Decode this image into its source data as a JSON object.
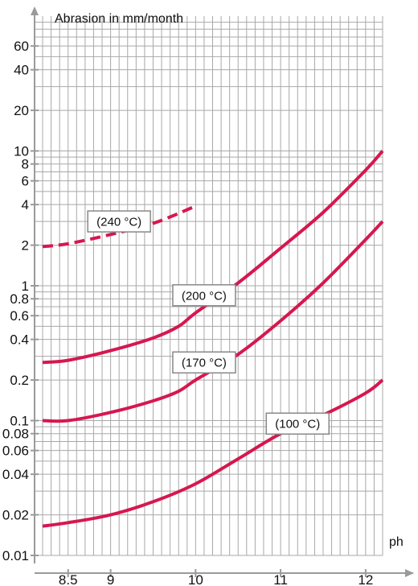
{
  "chart_data": {
    "type": "line",
    "xlabel": "ph",
    "ylabel": "Abrasion in mm/month",
    "xlim": [
      8.2,
      12.2
    ],
    "ylim": [
      0.01,
      100
    ],
    "y_scale": "log",
    "grid": true,
    "x_ticks": [
      {
        "value": 8.5,
        "label": "8.5"
      },
      {
        "value": 9,
        "label": "9"
      },
      {
        "value": 10,
        "label": "10"
      },
      {
        "value": 11,
        "label": "11"
      },
      {
        "value": 12,
        "label": "12"
      }
    ],
    "y_ticks": [
      {
        "value": 0.01,
        "label": "0.01"
      },
      {
        "value": 0.02,
        "label": "0.02"
      },
      {
        "value": 0.04,
        "label": "0.04"
      },
      {
        "value": 0.06,
        "label": "0.06"
      },
      {
        "value": 0.08,
        "label": "0.08"
      },
      {
        "value": 0.1,
        "label": "0.1"
      },
      {
        "value": 0.2,
        "label": "0.2"
      },
      {
        "value": 0.4,
        "label": "0.4"
      },
      {
        "value": 0.6,
        "label": "0.6"
      },
      {
        "value": 0.8,
        "label": "0.8"
      },
      {
        "value": 1,
        "label": "1"
      },
      {
        "value": 2,
        "label": "2"
      },
      {
        "value": 4,
        "label": "4"
      },
      {
        "value": 6,
        "label": "6"
      },
      {
        "value": 8,
        "label": "8"
      },
      {
        "value": 10,
        "label": "10"
      },
      {
        "value": 20,
        "label": "20"
      },
      {
        "value": 40,
        "label": "40"
      },
      {
        "value": 60,
        "label": "60"
      }
    ],
    "series": [
      {
        "name": "(240 °C)",
        "style": "dashed",
        "x": [
          8.2,
          8.5,
          9.0,
          9.5,
          10.0
        ],
        "values": [
          1.95,
          2.05,
          2.4,
          2.9,
          3.9
        ]
      },
      {
        "name": "(200 °C)",
        "style": "solid",
        "x": [
          8.2,
          8.5,
          9.0,
          9.5,
          9.8,
          10.0,
          10.5,
          11.0,
          11.5,
          12.0,
          12.2
        ],
        "values": [
          0.27,
          0.28,
          0.33,
          0.41,
          0.5,
          0.63,
          1.05,
          1.9,
          3.5,
          7.2,
          10
        ]
      },
      {
        "name": "(170 °C)",
        "style": "solid",
        "x": [
          8.2,
          8.5,
          9.0,
          9.5,
          9.8,
          10.0,
          10.5,
          11.0,
          11.5,
          12.0,
          12.2
        ],
        "values": [
          0.1,
          0.1,
          0.115,
          0.14,
          0.165,
          0.2,
          0.31,
          0.55,
          1.05,
          2.2,
          3.0
        ]
      },
      {
        "name": "(100 °C)",
        "style": "solid",
        "x": [
          8.2,
          8.5,
          9.0,
          9.5,
          10.0,
          10.5,
          11.0,
          11.5,
          12.0,
          12.2
        ],
        "values": [
          0.0165,
          0.0175,
          0.02,
          0.025,
          0.034,
          0.052,
          0.08,
          0.11,
          0.16,
          0.2
        ]
      }
    ],
    "colors": {
      "series": "#d6174f",
      "grid": "#a8a8a8",
      "axis": "#9a9a9a",
      "label_border": "#888888"
    }
  }
}
